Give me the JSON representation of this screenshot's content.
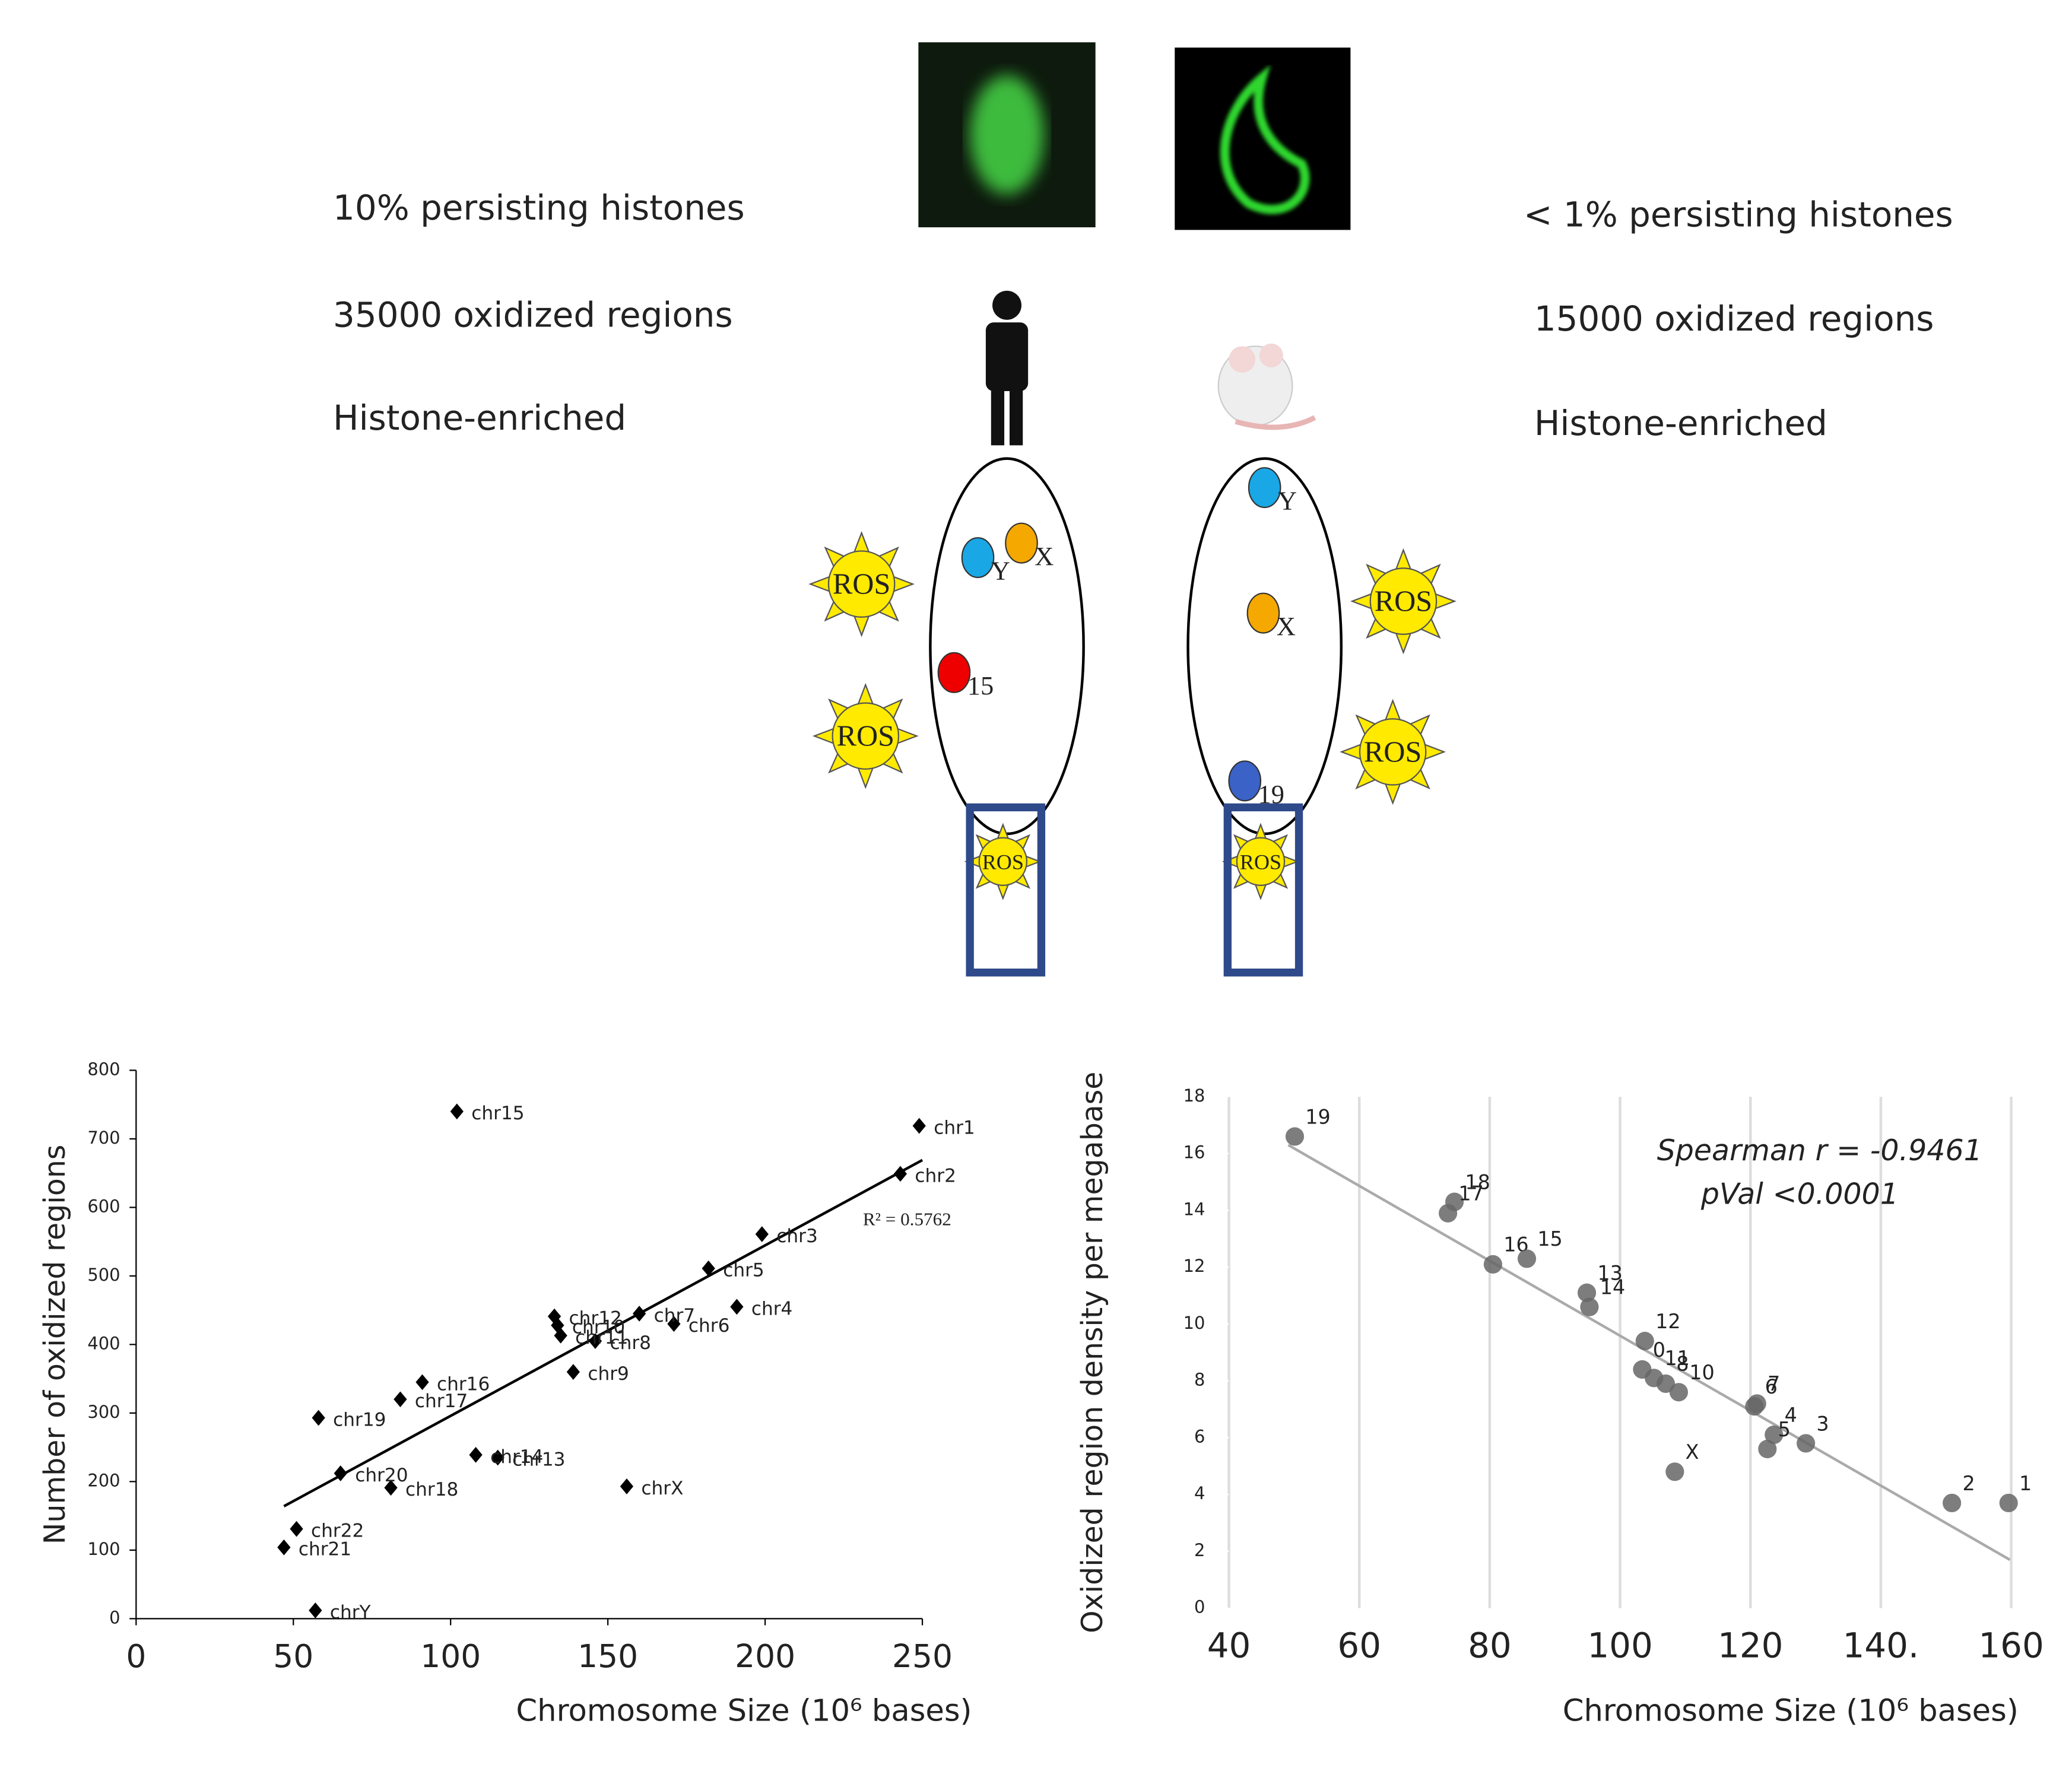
{
  "diagram": {
    "left_text": [
      "10% persisting histones",
      "35000 oxidized regions",
      "Histone-enriched"
    ],
    "right_text": [
      "< 1% persisting histones",
      "15000 oxidized regions",
      "Histone-enriched"
    ],
    "ros": "ROS",
    "left_chromosomes": [
      "Y",
      "X",
      "15"
    ],
    "right_chromosomes": [
      "Y",
      "X",
      "19"
    ]
  },
  "chart_data": [
    {
      "type": "scatter",
      "x_label": "Chromosome Size (10⁶ bases)",
      "y_label": "Number of oxidized regions",
      "annotation": "R² = 0.5762",
      "labels": [
        "chr1",
        "chr2",
        "chr3",
        "chr4",
        "chr5",
        "chr6",
        "chr7",
        "chr8",
        "chr9",
        "chr10",
        "chr11",
        "chr12",
        "chr13",
        "chr14",
        "chr15",
        "chr16",
        "chr17",
        "chr18",
        "chr19",
        "chr20",
        "chr21",
        "chr22",
        "chrX",
        "chrY"
      ],
      "x": [
        249,
        243,
        199,
        191,
        182,
        171,
        160,
        146,
        139,
        134,
        135,
        133,
        115,
        108,
        102,
        91,
        84,
        81,
        58,
        65,
        47,
        51,
        156,
        57
      ],
      "values": [
        719,
        649,
        561,
        455,
        511,
        430,
        445,
        405,
        360,
        428,
        413,
        441,
        235,
        239,
        740,
        345,
        320,
        191,
        293,
        212,
        104,
        131,
        193,
        12
      ],
      "color": "#000000",
      "trendline": {
        "x": [
          47,
          250
        ],
        "values": [
          164,
          669
        ]
      },
      "xlim": [
        0,
        250
      ],
      "xticks": [
        0,
        50,
        100,
        150,
        200,
        250
      ],
      "ylim": [
        0,
        800
      ],
      "yticks": [
        0,
        100,
        200,
        300,
        400,
        500,
        600,
        700,
        800
      ],
      "grid": false
    },
    {
      "type": "scatter",
      "x_label": "Chromosome Size (10⁶ bases)",
      "y_label": "Oxidized region density per megabase",
      "annotation": [
        "Spearman r = -0.9461",
        "pVal <0.0001"
      ],
      "labels": [
        "19",
        "18",
        "17",
        "16",
        "15",
        "13",
        "14",
        "12",
        "0",
        "8",
        "11",
        "10",
        "6",
        "7",
        "4",
        "5",
        "3",
        "X",
        "2",
        "1"
      ],
      "x": [
        50.1,
        74.6,
        73.6,
        80.5,
        85.7,
        94.9,
        95.3,
        103.8,
        103.4,
        107,
        105.2,
        109,
        120.6,
        121,
        123.6,
        122.6,
        128.5,
        108.4,
        150.9,
        159.6
      ],
      "values": [
        16.6,
        14.3,
        13.9,
        12.1,
        12.3,
        11.1,
        10.6,
        9.4,
        8.4,
        7.9,
        8.1,
        7.6,
        7.1,
        7.2,
        6.1,
        5.6,
        5.8,
        4.8,
        3.7,
        3.7
      ],
      "color": "#666666",
      "trendline": {
        "x": [
          49.1,
          159.8
        ],
        "values": [
          16.3,
          1.7
        ]
      },
      "xlim": [
        40,
        160
      ],
      "xticks": [
        40,
        60,
        80,
        100,
        120,
        {
          "value": 140,
          "label": "140."
        },
        160
      ],
      "ylim": [
        0,
        18
      ],
      "yticks": [
        0,
        2,
        4,
        6,
        8,
        10,
        12,
        14,
        16,
        18
      ],
      "grid": true
    }
  ]
}
